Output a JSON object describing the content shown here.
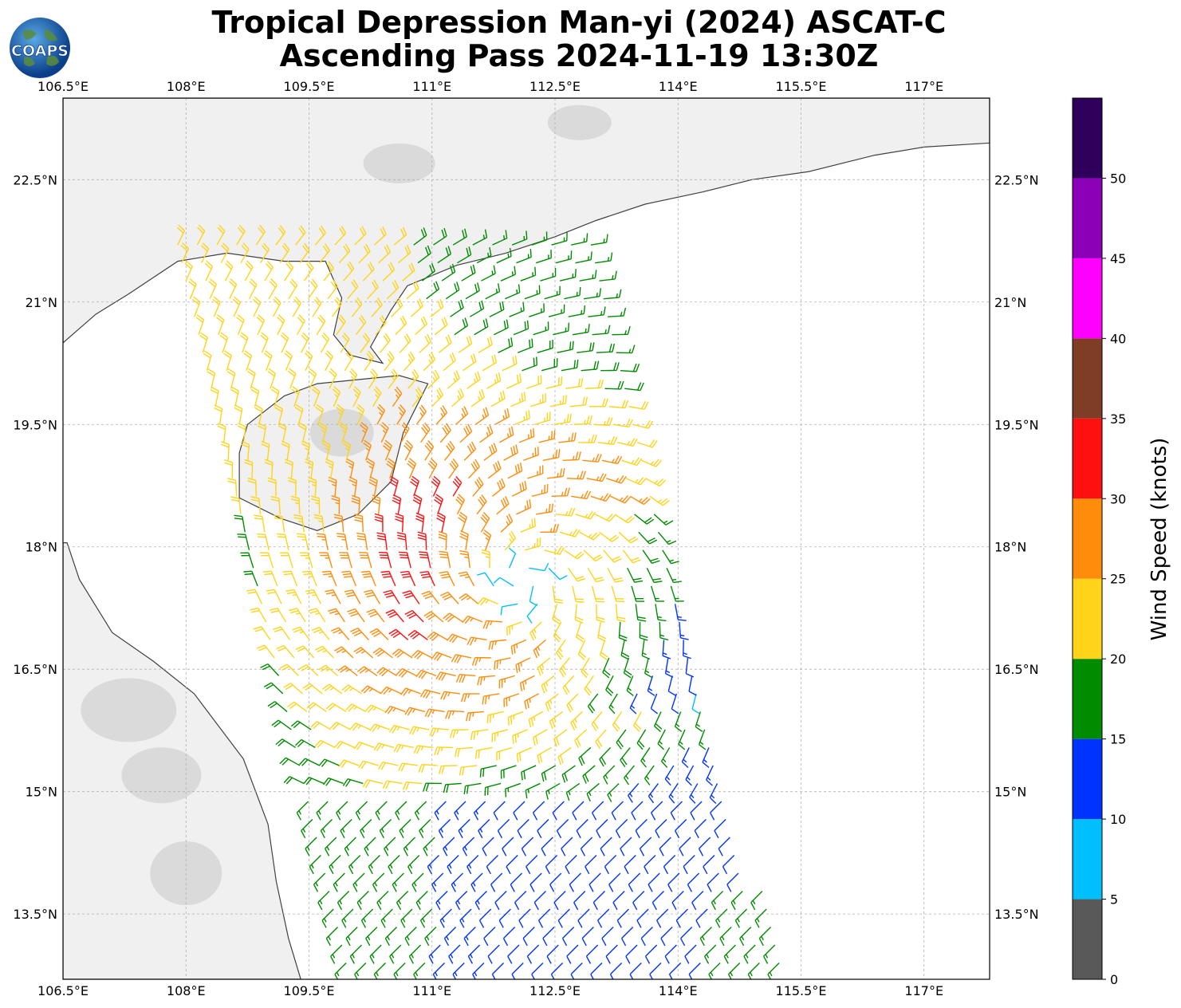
{
  "title": {
    "line1": "Tropical Depression Man-yi (2024) ASCAT-C",
    "line2": "Ascending Pass 2024-11-19 13:30Z"
  },
  "logo": {
    "text": "COAPS",
    "icon": "globe-logo-icon"
  },
  "map": {
    "lon_range": [
      106.5,
      117.8
    ],
    "lat_range": [
      12.7,
      23.5
    ],
    "lon_ticks": [
      "106.5°E",
      "108°E",
      "109.5°E",
      "111°E",
      "112.5°E",
      "114°E",
      "115.5°E",
      "117°E"
    ],
    "lat_ticks": [
      "22.5°N",
      "21°N",
      "19.5°N",
      "18°N",
      "16.5°N",
      "15°N",
      "13.5°N"
    ],
    "grid": true,
    "land_color": "#f0f0f0",
    "coast_color": "#404040",
    "swath_description": "ASCAT-C wind barbs",
    "storm_center_approx": {
      "lon": 112.1,
      "lat": 17.6
    }
  },
  "colorbar": {
    "label": "Wind Speed (knots)",
    "tick_labels": [
      "0",
      "5",
      "10",
      "15",
      "20",
      "25",
      "30",
      "35",
      "40",
      "45",
      "50"
    ],
    "bins": [
      {
        "min": 0,
        "max": 5,
        "color": "#595959"
      },
      {
        "min": 5,
        "max": 10,
        "color": "#00bfff"
      },
      {
        "min": 10,
        "max": 15,
        "color": "#0033ff"
      },
      {
        "min": 15,
        "max": 20,
        "color": "#008c00"
      },
      {
        "min": 20,
        "max": 25,
        "color": "#ffd31a"
      },
      {
        "min": 25,
        "max": 30,
        "color": "#ff8c0a"
      },
      {
        "min": 30,
        "max": 35,
        "color": "#ff1010"
      },
      {
        "min": 35,
        "max": 40,
        "color": "#803d26"
      },
      {
        "min": 40,
        "max": 45,
        "color": "#ff00ff"
      },
      {
        "min": 45,
        "max": 50,
        "color": "#8c00b8"
      },
      {
        "min": 50,
        "max": 55,
        "color": "#2e005c"
      }
    ]
  }
}
